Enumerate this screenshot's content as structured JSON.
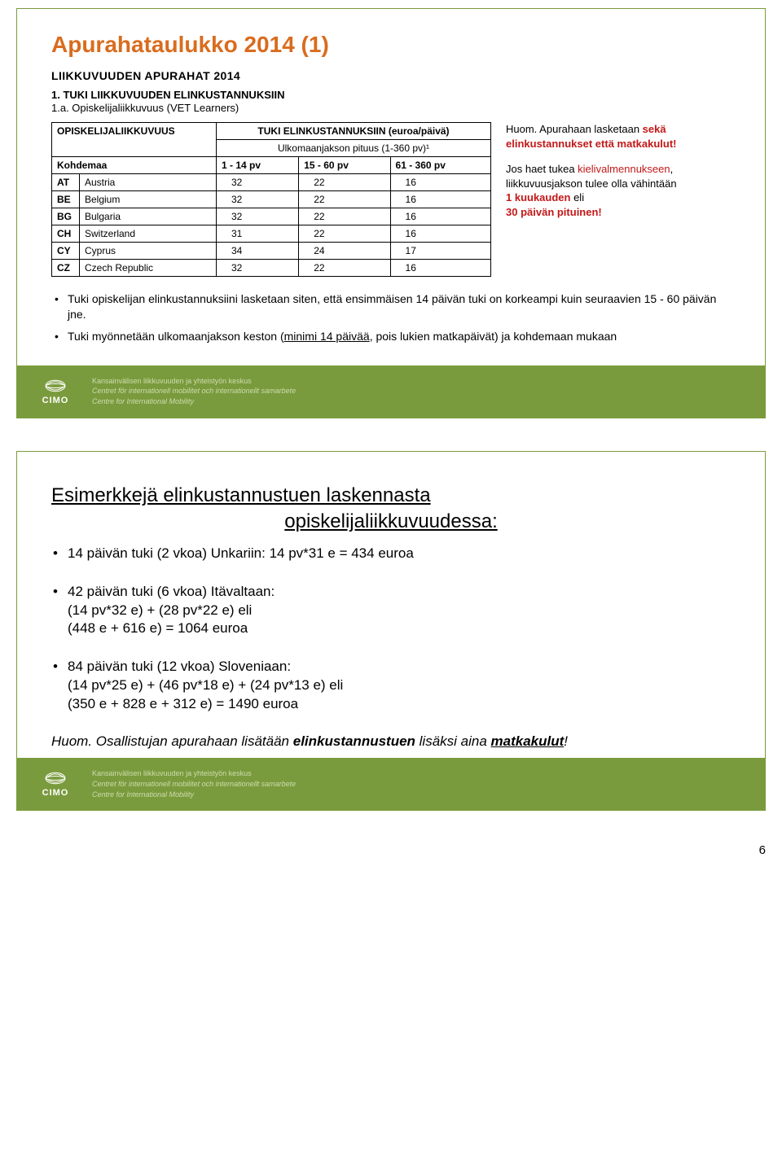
{
  "slide1": {
    "title": "Apurahataulukko 2014 (1)",
    "title_color": "#d96c1e",
    "heading": "LIIKKUVUUDEN APURAHAT 2014",
    "sub_a": "1. TUKI LIIKKUVUUDEN ELINKUSTANNUKSIIN",
    "sub_b": "1.a. Opiskelijaliikkuvuus (VET Learners)",
    "table": {
      "top_left": "OPISKELIJALIIKKUVUUS",
      "top_right": "TUKI ELINKUSTANNUKSIIN (euroa/päivä)",
      "sub_right": "Ulkomaanjakson pituus (1-360 pv)¹",
      "cols": [
        "Kohdemaa",
        "1 - 14 pv",
        "15 - 60 pv",
        "61 - 360 pv"
      ],
      "rows": [
        {
          "code": "AT",
          "name": "Austria",
          "v": [
            "32",
            "22",
            "16"
          ]
        },
        {
          "code": "BE",
          "name": "Belgium",
          "v": [
            "32",
            "22",
            "16"
          ]
        },
        {
          "code": "BG",
          "name": "Bulgaria",
          "v": [
            "32",
            "22",
            "16"
          ]
        },
        {
          "code": "CH",
          "name": "Switzerland",
          "v": [
            "31",
            "22",
            "16"
          ]
        },
        {
          "code": "CY",
          "name": "Cyprus",
          "v": [
            "34",
            "24",
            "17"
          ]
        },
        {
          "code": "CZ",
          "name": "Czech Republic",
          "v": [
            "32",
            "22",
            "16"
          ]
        }
      ]
    },
    "note1_a": "Huom. Apurahaan lasketaan ",
    "note1_b": "sekä elinkustannukset että matkakulut!",
    "note2_a": "Jos haet tukea ",
    "note2_b": "kielivalmennukseen",
    "note2_c": ", liikkuvuusjakson tulee olla vähintään",
    "note2_d": "1 kuukauden ",
    "note2_e": "eli",
    "note2_f": "30 päivän pituinen!",
    "bullet1_a": "Tuki opiskelijan elinkustannuksiini lasketaan siten, että ensimmäisen 14 päivän tuki on korkeampi kuin seuraavien 15 - 60 päivän jne.",
    "bullet2_a": "Tuki myönnetään ulkomaanjakson keston (",
    "bullet2_b": "minimi 14 päivää",
    "bullet2_c": ", pois lukien matkapäivät) ja kohdemaan mukaan"
  },
  "slide2": {
    "title_a": "Esimerkkejä elinkustannustuen laskennasta",
    "title_b": "opiskelijaliikkuvuudessa:",
    "ex1": "14 päivän tuki (2 vkoa) Unkariin: 14 pv*31 e = 434 euroa",
    "ex2_a": "42 päivän tuki (6 vkoa) Itävaltaan:",
    "ex2_b": "(14 pv*32 e) + (28 pv*22 e) eli",
    "ex2_c": "(448 e + 616 e) = 1064 euroa",
    "ex3_a": "84 päivän tuki (12 vkoa) Sloveniaan:",
    "ex3_b": "(14 pv*25 e) + (46 pv*18 e) + (24 pv*13 e) eli",
    "ex3_c": "(350 e + 828 e + 312 e) = 1490 euroa",
    "footnote_a": "Huom. Osallistujan apurahaan lisätään ",
    "footnote_b": "elinkustannustuen",
    "footnote_c": " lisäksi aina ",
    "footnote_d": "matkakulut",
    "footnote_e": "!"
  },
  "footer": {
    "logo": "CIMO",
    "line1": "Kansainvälisen liikkuvuuden ja yhteistyön keskus",
    "line2": "Centret för internationell mobilitet och internationellt samarbete",
    "line3": "Centre for International Mobility"
  },
  "pagenum": "6",
  "colors": {
    "accent": "#7a9b3d",
    "orange": "#d96c1e",
    "red": "#c31818"
  }
}
